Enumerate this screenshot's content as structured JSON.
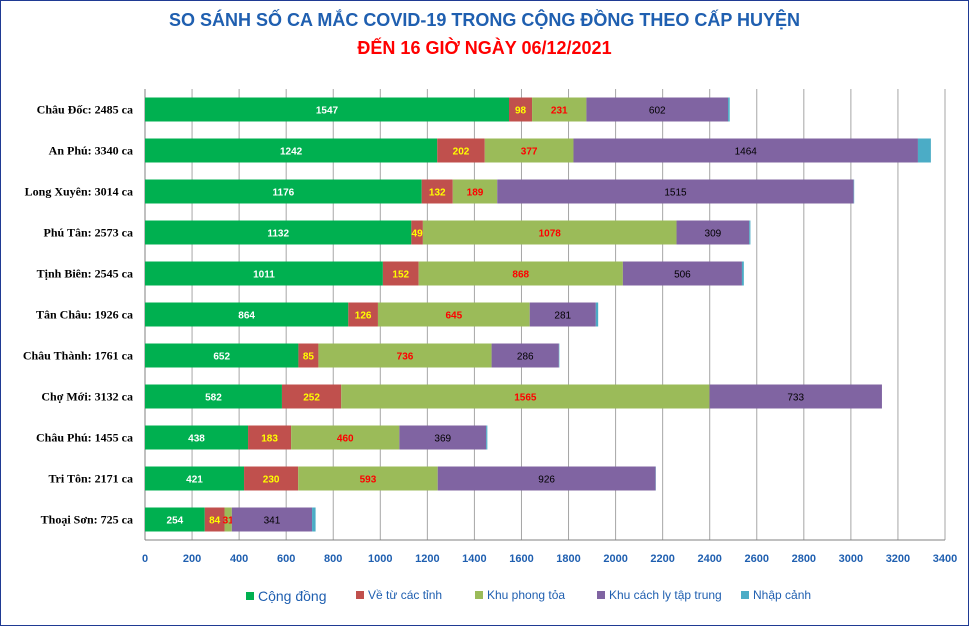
{
  "title": "SO SÁNH SỐ CA MẮC COVID-19 TRONG CỘNG ĐỒNG THEO CẤP HUYỆN",
  "subtitle": "ĐẾN 16 GIỜ NGÀY 06/12/2021",
  "chart_data": {
    "type": "bar",
    "orientation": "horizontal",
    "stacked": true,
    "title": "SO SÁNH SỐ CA MẮC COVID-19 TRONG CỘNG ĐỒNG THEO CẤP HUYỆN",
    "subtitle": "ĐẾN 16 GIỜ NGÀY 06/12/2021",
    "categories": [
      "Châu Đốc: 2485 ca",
      "An Phú: 3340 ca",
      "Long Xuyên: 3014 ca",
      "Phú Tân: 2573 ca",
      "Tịnh Biên: 2545 ca",
      "Tân Châu: 1926 ca",
      "Châu Thành: 1761 ca",
      "Chợ Mới: 3132 ca",
      "Châu Phú: 1455 ca",
      "Tri Tôn:  2171 ca",
      "Thoại  Sơn: 725 ca"
    ],
    "series": [
      {
        "name": "Cộng đồng",
        "color": "#00b050",
        "label_color": "#ffffff",
        "values": [
          1547,
          1242,
          1176,
          1132,
          1011,
          864,
          652,
          582,
          438,
          421,
          254
        ]
      },
      {
        "name": "Về từ các tỉnh",
        "color": "#c0504d",
        "label_color": "#ffff00",
        "values": [
          98,
          202,
          132,
          49,
          152,
          126,
          85,
          252,
          183,
          230,
          84
        ]
      },
      {
        "name": "Khu phong tỏa",
        "color": "#9bbb59",
        "label_color": "#ff0000",
        "values": [
          231,
          377,
          189,
          1078,
          868,
          645,
          736,
          1565,
          460,
          593,
          31
        ]
      },
      {
        "name": "Khu cách ly tập trung",
        "color": "#8064a2",
        "label_color": "#000000",
        "values": [
          602,
          1464,
          1515,
          309,
          506,
          281,
          286,
          733,
          369,
          926,
          341
        ]
      },
      {
        "name": "Nhập cảnh",
        "color": "#4bacc6",
        "label_color": "#000000",
        "values": [
          7,
          55,
          2,
          5,
          8,
          10,
          2,
          0,
          5,
          1,
          15
        ]
      }
    ],
    "xlim": [
      0,
      3400
    ],
    "xticks": [
      0,
      200,
      400,
      600,
      800,
      1000,
      1200,
      1400,
      1600,
      1800,
      2000,
      2200,
      2400,
      2600,
      2800,
      3000,
      3200,
      3400
    ],
    "grid": true,
    "legend": "bottom"
  }
}
